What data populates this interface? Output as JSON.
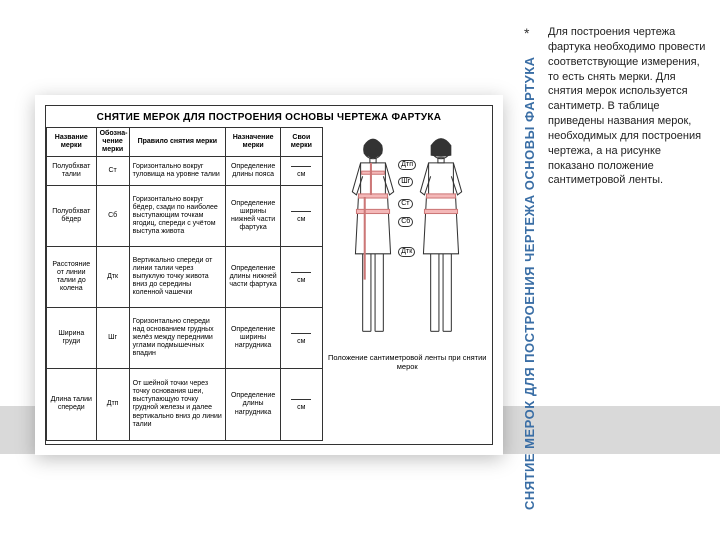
{
  "slide": {
    "vertical_title": "СНЯТИЕ МЕРОК ДЛЯ ПОСТРОЕНИЯ ЧЕРТЕЖА ОСНОВЫ ФАРТУКА",
    "asterisk": "*",
    "paragraph": "Для построения чертежа фартука необходимо провести соответствующие измерения, то есть снять мерки. Для снятия мерок используется сантиметр. В таблице приведены названия мерок, необходимых для построения чертежа, а на рисунке показано положение сантиметровой ленты.",
    "panel_title": "СНЯТИЕ МЕРОК ДЛЯ ПОСТРОЕНИЯ ОСНОВЫ ЧЕРТЕЖА ФАРТУКА",
    "figure_caption": "Положение сантиметровой ленты при снятии мерок",
    "gray_band_color": "#d9d9d9",
    "title_color": "#3a6ea5"
  },
  "table": {
    "columns": [
      "Название мерки",
      "Обозна-чение мерки",
      "Правило снятия мерки",
      "Назначение мерки",
      "Свои мерки"
    ],
    "unit": "см",
    "rows": [
      {
        "name": "Полуобхват талии",
        "code": "Ст",
        "rule": "Горизонтально вокруг туловища на уровне талии",
        "purpose": "Определение длины пояса"
      },
      {
        "name": "Полуобхват бёдер",
        "code": "Сб",
        "rule": "Горизонтально вокруг бёдер, сзади по наиболее выступающим точкам ягодиц, спереди с учётом выступа живота",
        "purpose": "Определение ширины нижней части фартука"
      },
      {
        "name": "Расстояние от линии талии до колена",
        "code": "Дтк",
        "rule": "Вертикально спереди от линии талии через выпуклую точку живота вниз до середины коленной чашечки",
        "purpose": "Определение длины нижней части фартука"
      },
      {
        "name": "Ширина груди",
        "code": "Шг",
        "rule": "Горизонтально спереди над основанием грудных желёз между передними углами подмышечных впадин",
        "purpose": "Определение ширины нагрудника"
      },
      {
        "name": "Длина талии спереди",
        "code": "Дтп",
        "rule": "От шейной точки через точку основания шеи, выступающую точку грудной железы и далее вертикально вниз до линии талии",
        "purpose": "Определение длины нагрудника"
      }
    ]
  },
  "figure": {
    "labels_front": [
      "Дтп",
      "Шг",
      "Ст",
      "Сб",
      "Дтк"
    ]
  }
}
